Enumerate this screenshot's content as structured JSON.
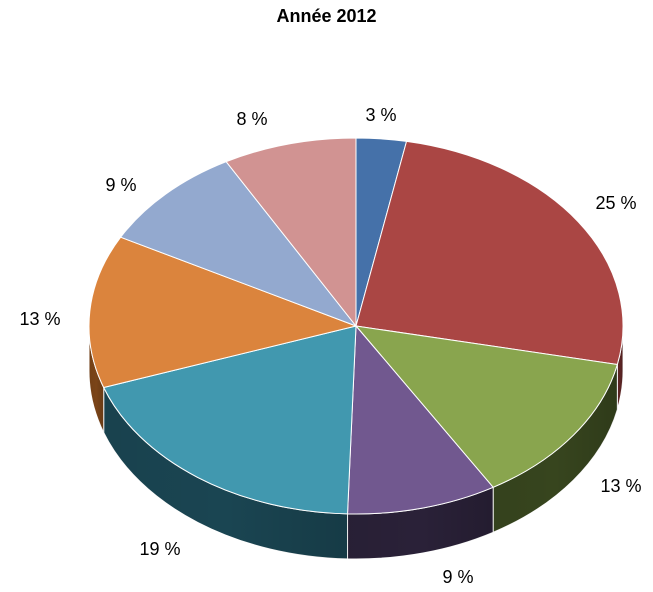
{
  "chart_data": {
    "type": "pie",
    "title": "Année 2012",
    "categories": [
      "",
      "",
      "",
      "",
      "",
      "",
      "",
      ""
    ],
    "values": [
      3,
      25,
      13,
      9,
      19,
      13,
      9,
      8
    ],
    "labels": [
      "3 %",
      "25 %",
      "13 %",
      "9 %",
      "19 %",
      "13 %",
      "9 %",
      "8 %"
    ],
    "colors": [
      "#4571A9",
      "#AA4644",
      "#89A54E",
      "#71588F",
      "#4198AF",
      "#DB843D",
      "#93A9CF",
      "#D19392"
    ],
    "side_colors": [
      "#2b4566",
      "#5c2524",
      "#37451e",
      "#2a2138",
      "#1a4552",
      "#7a4418",
      "#4f6078",
      "#7a4f4f"
    ],
    "start": "12 o'clock",
    "direction": "clockwise",
    "style": "3d-tilted",
    "legend": "none"
  }
}
